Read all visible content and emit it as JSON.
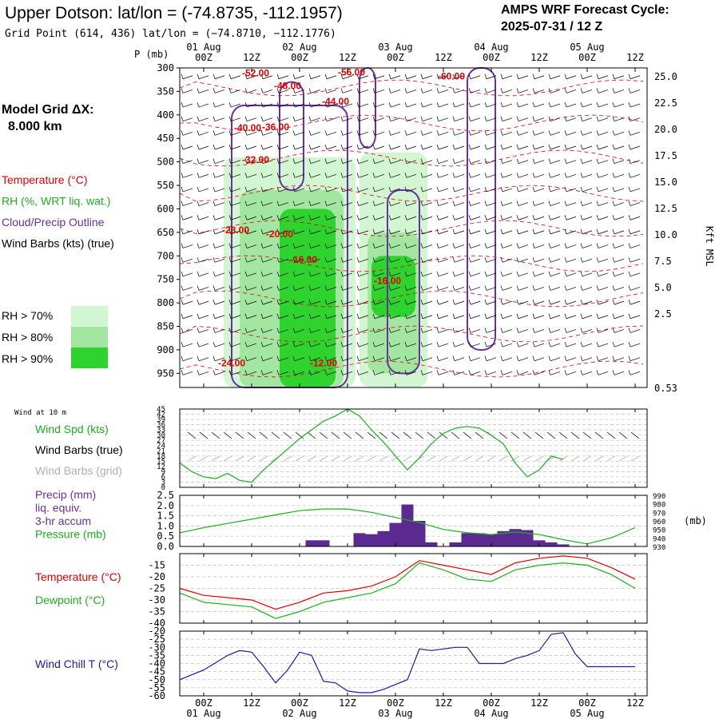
{
  "header": {
    "title": "Upper Dotson:  lat/lon = (-74.8735, -112.1957)",
    "subtitle": "Grid Point (614, 436) lat/lon = (−74.8710, −112.1776)",
    "cycle_label": "AMPS WRF Forecast Cycle:",
    "cycle_value": "2025-07-31 / 12  Z"
  },
  "left_panel": {
    "grid_label": "Model Grid ΔX:",
    "grid_value": "8.000 km",
    "legend": [
      {
        "text": "Temperature (°C)",
        "color": "#e00000"
      },
      {
        "text": "RH (%, WRT liq. wat.)",
        "color": "#1fae1f"
      },
      {
        "text": "Cloud/Precip Outline",
        "color": "#6a2fa0"
      },
      {
        "text": "Wind Barbs (kts) (true)",
        "color": "#000000"
      }
    ],
    "rh_legend": [
      {
        "text": "RH > 70%",
        "color": "#d2f5d2"
      },
      {
        "text": "RH > 80%",
        "color": "#a2e6a2"
      },
      {
        "text": "RH > 90%",
        "color": "#2ed32e"
      }
    ]
  },
  "time_axis": {
    "ticks": [
      "00Z",
      "12Z",
      "00Z",
      "12Z",
      "00Z",
      "12Z",
      "00Z",
      "12Z",
      "00Z",
      "12Z"
    ],
    "days": [
      "01 Aug",
      "02 Aug",
      "03 Aug",
      "04 Aug",
      "05 Aug"
    ]
  },
  "chart_data": [
    {
      "type": "heatmap",
      "panel": "cross-section",
      "ylabel_left": "P (mb)",
      "ylabel_right": "Kft MSL",
      "pressure_ticks": [
        "300",
        "350",
        "400",
        "450",
        "500",
        "550",
        "600",
        "650",
        "700",
        "750",
        "800",
        "850",
        "900",
        "950"
      ],
      "height_ticks": [
        "25.0",
        "22.5",
        "20.0",
        "17.5",
        "15.0",
        "12.5",
        "10.0",
        "7.5",
        "5.0",
        "2.5",
        "0.53"
      ],
      "temperature_labels": [
        {
          "text": "-52.00",
          "t": 19,
          "p": 318
        },
        {
          "text": "-56.00",
          "t": 43,
          "p": 316
        },
        {
          "text": "-60.00",
          "t": 68,
          "p": 325
        },
        {
          "text": "-48.00",
          "t": 27,
          "p": 345
        },
        {
          "text": "-44.00",
          "t": 39,
          "p": 378
        },
        {
          "text": "-40.00",
          "t": 17,
          "p": 434
        },
        {
          "text": "-36.00",
          "t": 24,
          "p": 433
        },
        {
          "text": "-32.00",
          "t": 19,
          "p": 502
        },
        {
          "text": "-28.00",
          "t": 14,
          "p": 652
        },
        {
          "text": "-20.00",
          "t": 25,
          "p": 660
        },
        {
          "text": "-16.00",
          "t": 31,
          "p": 715
        },
        {
          "text": "-16.00",
          "t": 52,
          "p": 760
        },
        {
          "text": "-24.00",
          "t": 13,
          "p": 935
        },
        {
          "text": "-12.00",
          "t": 36,
          "p": 935
        }
      ],
      "rh_regions": [
        {
          "level": ">70%",
          "t": [
            11,
            44
          ],
          "p": [
            490,
            980
          ]
        },
        {
          "level": ">70%",
          "t": [
            45,
            62
          ],
          "p": [
            480,
            980
          ]
        },
        {
          "level": ">80%",
          "t": [
            15,
            41
          ],
          "p": [
            560,
            980
          ]
        },
        {
          "level": ">80%",
          "t": [
            47,
            60
          ],
          "p": [
            650,
            950
          ]
        },
        {
          "level": ">90%",
          "t": [
            25,
            39
          ],
          "p": [
            600,
            980
          ]
        },
        {
          "level": ">90%",
          "t": [
            48,
            59
          ],
          "p": [
            700,
            830
          ]
        }
      ]
    },
    {
      "type": "line",
      "panel": "wind",
      "label_small": "Wind at 10 m",
      "legend": [
        {
          "text": "Wind Spd (kts)",
          "color": "#1fae1f"
        },
        {
          "text": "Wind Barbs (true)",
          "color": "#000000"
        },
        {
          "text": "Wind Barbs (grid)",
          "color": "#b0b0b0"
        }
      ],
      "y_ticks": [
        "45",
        "42",
        "39",
        "36",
        "33",
        "30",
        "27",
        "24",
        "21",
        "18",
        "15",
        "12",
        "9",
        "6",
        "3",
        "0"
      ],
      "ylim": [
        0,
        45
      ],
      "x": [
        0,
        3,
        6,
        9,
        12,
        15,
        18,
        21,
        24,
        27,
        30,
        33,
        36,
        39,
        42,
        45,
        48,
        51,
        54,
        57,
        60,
        63,
        66,
        69,
        72,
        75,
        78,
        81,
        84,
        87,
        90,
        93,
        96
      ],
      "values": [
        14,
        9,
        6,
        5,
        8,
        4,
        3,
        10,
        16,
        22,
        28,
        33,
        38,
        41,
        45,
        41,
        33,
        26,
        18,
        10,
        17,
        25,
        31,
        34,
        35,
        34,
        30,
        25,
        14,
        6,
        10,
        18,
        16
      ]
    },
    {
      "type": "bar",
      "panel": "precip-pressure",
      "legend": [
        {
          "text": "Precip (mm)",
          "color": "#6a2fa0"
        },
        {
          "text": "liq. equiv.",
          "color": "#6a2fa0"
        },
        {
          "text": "3-hr accum",
          "color": "#6a2fa0"
        },
        {
          "text": "Pressure (mb)",
          "color": "#1fae1f"
        }
      ],
      "y_ticks_left": [
        "2.5",
        "2.0",
        "1.5",
        "1.0",
        "0.5",
        "0.0"
      ],
      "y_ticks_right": [
        "990",
        "980",
        "970",
        "960",
        "950",
        "940",
        "930"
      ],
      "ylabel_right": "(mb)",
      "ylim_left": [
        0,
        2.5
      ],
      "ylim_right": [
        930,
        990
      ],
      "precip_x": [
        33,
        36,
        45,
        48,
        51,
        54,
        57,
        60,
        63,
        69,
        72,
        75,
        78,
        81,
        84,
        87,
        90,
        93,
        96
      ],
      "precip_mm": [
        0.3,
        0.3,
        0.65,
        0.6,
        0.75,
        1.15,
        2.05,
        1.25,
        0.2,
        0.2,
        0.65,
        0.65,
        0.6,
        0.75,
        0.85,
        0.8,
        0.3,
        0.2,
        0.1
      ],
      "pressure_x": [
        0,
        6,
        12,
        18,
        24,
        30,
        36,
        42,
        48,
        54,
        60,
        66,
        72,
        78,
        84,
        90,
        96,
        102,
        108,
        114
      ],
      "pressure_mb": [
        946,
        952,
        957,
        962,
        967,
        972,
        974,
        974,
        970,
        964,
        958,
        950,
        946,
        944,
        947,
        944,
        938,
        933,
        940,
        952
      ]
    },
    {
      "type": "line",
      "panel": "temp-dewpoint",
      "legend": [
        {
          "text": "Temperature (°C)",
          "color": "#e00000"
        },
        {
          "text": "Dewpoint (°C)",
          "color": "#1fae1f"
        }
      ],
      "y_ticks": [
        "-15",
        "-20",
        "-25",
        "-30",
        "-35",
        "-40"
      ],
      "ylim": [
        -40,
        -10
      ],
      "x": [
        0,
        6,
        12,
        18,
        24,
        30,
        36,
        42,
        48,
        54,
        60,
        66,
        72,
        78,
        84,
        90,
        96,
        102,
        108,
        114
      ],
      "series": [
        {
          "name": "Temperature (°C)",
          "values": [
            -25,
            -28,
            -29,
            -30,
            -34,
            -31,
            -27,
            -26,
            -24,
            -20,
            -13,
            -15,
            -17,
            -19,
            -14,
            -12,
            -11,
            -12,
            -16,
            -21
          ]
        },
        {
          "name": "Dewpoint (°C)",
          "values": [
            -27,
            -31,
            -32,
            -33,
            -38,
            -35,
            -31,
            -29,
            -27,
            -23,
            -14,
            -17,
            -21,
            -22,
            -17,
            -15,
            -14,
            -15,
            -19,
            -25
          ]
        }
      ]
    },
    {
      "type": "line",
      "panel": "wind-chill",
      "legend": [
        {
          "text": "Wind Chill T (°C)",
          "color": "#1a1aa8"
        }
      ],
      "y_ticks": [
        "-20",
        "-25",
        "-30",
        "-35",
        "-40",
        "-45",
        "-50",
        "-55",
        "-60"
      ],
      "ylim": [
        -60,
        -20
      ],
      "x": [
        0,
        6,
        12,
        15,
        18,
        21,
        24,
        27,
        30,
        33,
        36,
        39,
        42,
        45,
        48,
        51,
        54,
        57,
        60,
        63,
        66,
        69,
        72,
        75,
        78,
        81,
        84,
        87,
        90,
        93,
        96,
        99,
        102,
        105,
        108,
        111,
        114
      ],
      "values": [
        -50,
        -44,
        -35,
        -32,
        -33,
        -42,
        -52,
        -44,
        -33,
        -35,
        -51,
        -52,
        -57,
        -58,
        -58,
        -56,
        -53,
        -50,
        -31,
        -32,
        -31,
        -30,
        -30,
        -40,
        -40,
        -40,
        -37,
        -35,
        -32,
        -22,
        -21,
        -34,
        -42,
        -42,
        -42,
        -42,
        -42
      ]
    }
  ]
}
